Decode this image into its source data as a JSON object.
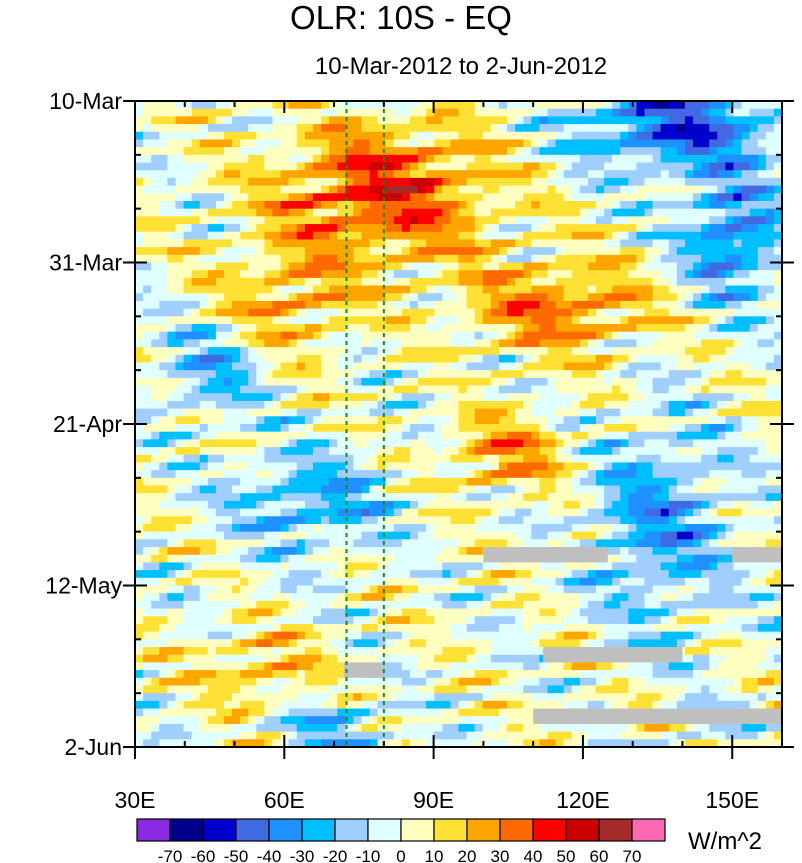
{
  "chart_data": {
    "type": "heatmap",
    "title": "OLR: 10S - EQ",
    "subtitle": "10-Mar-2012 to 2-Jun-2012",
    "xlabel": "",
    "ylabel": "",
    "x_range": [
      30,
      160
    ],
    "x_ticks": [
      {
        "value": 30,
        "label": "30E"
      },
      {
        "value": 60,
        "label": "60E"
      },
      {
        "value": 90,
        "label": "90E"
      },
      {
        "value": 120,
        "label": "120E"
      },
      {
        "value": 150,
        "label": "150E"
      }
    ],
    "y_range_days": [
      0,
      84
    ],
    "y_ticks": [
      {
        "day": 0,
        "label": "10-Mar"
      },
      {
        "day": 21,
        "label": "31-Mar"
      },
      {
        "day": 42,
        "label": "21-Apr"
      },
      {
        "day": 63,
        "label": "12-May"
      },
      {
        "day": 84,
        "label": "2-Jun"
      }
    ],
    "reference_lines_lon": [
      72.5,
      80
    ],
    "colorbar": {
      "units": "W/m^2",
      "levels": [
        "-70",
        "-60",
        "-50",
        "-40",
        "-30",
        "-20",
        "-10",
        "0",
        "10",
        "20",
        "30",
        "40",
        "50",
        "60",
        "70"
      ],
      "colors": [
        "#8a2be2",
        "#00008b",
        "#0000cd",
        "#4169e1",
        "#1e90ff",
        "#00bfff",
        "#a0cfff",
        "#e0ffff",
        "#ffffc0",
        "#ffe135",
        "#ffa500",
        "#ff6a00",
        "#ff0000",
        "#cc0000",
        "#a52a2a",
        "#ff69b4"
      ]
    },
    "missing_segments": [
      {
        "lon": [
          72,
          80
        ],
        "day": [
          73,
          75
        ]
      },
      {
        "lon": [
          100,
          125
        ],
        "day": [
          58,
          60
        ]
      },
      {
        "lon": [
          150,
          160
        ],
        "day": [
          58,
          60
        ]
      },
      {
        "lon": [
          112,
          140
        ],
        "day": [
          71,
          73
        ]
      },
      {
        "lon": [
          110,
          160
        ],
        "day": [
          79,
          81
        ]
      }
    ]
  }
}
